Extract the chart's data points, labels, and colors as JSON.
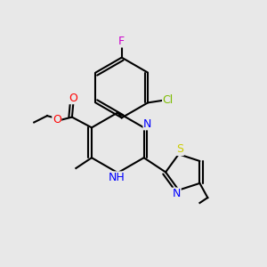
{
  "bg_color": "#e8e8e8",
  "bond_color": "#000000",
  "atom_colors": {
    "N": "#0000ff",
    "O": "#ff0000",
    "S": "#cccc00",
    "F": "#cc00cc",
    "Cl": "#7cbb00",
    "C": "#000000",
    "H": "#000000"
  },
  "font_size": 8.5,
  "bond_width": 1.5,
  "dbo": 0.012
}
